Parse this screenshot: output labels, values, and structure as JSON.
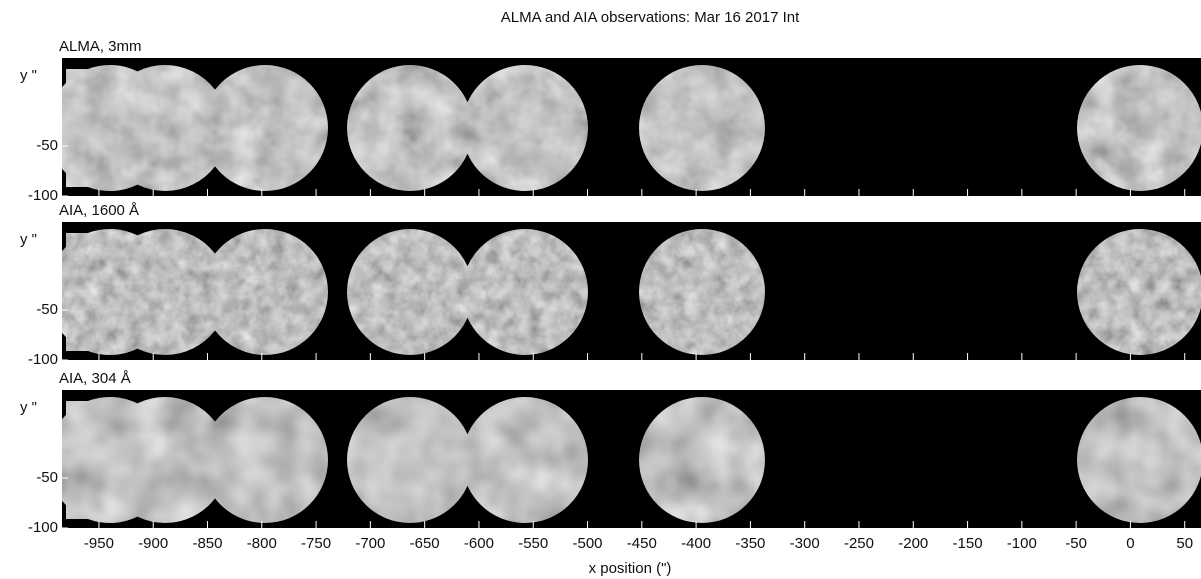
{
  "chart_data": {
    "type": "image",
    "title": "ALMA and AIA observations: Mar 16 2017 Int",
    "xlabel": "x position (\")",
    "xlim": [
      -984,
      65
    ],
    "xticks": [
      -950,
      -900,
      -850,
      -800,
      -750,
      -700,
      -650,
      -600,
      -550,
      -500,
      -450,
      -400,
      -350,
      -300,
      -250,
      -200,
      -150,
      -100,
      -50,
      0,
      50
    ],
    "panels": [
      {
        "label": "ALMA, 3mm",
        "ylabel": "y \"",
        "ylim": [
          -100,
          38
        ],
        "yticks": [
          -50,
          -100
        ]
      },
      {
        "label": "AIA, 1600 Å",
        "ylabel": "y \"",
        "ylim": [
          -100,
          38
        ],
        "yticks": [
          -50,
          -100
        ]
      },
      {
        "label": "AIA, 304 Å",
        "ylabel": "y \"",
        "ylim": [
          -100,
          38
        ],
        "yticks": [
          -50,
          -100
        ]
      }
    ]
  }
}
